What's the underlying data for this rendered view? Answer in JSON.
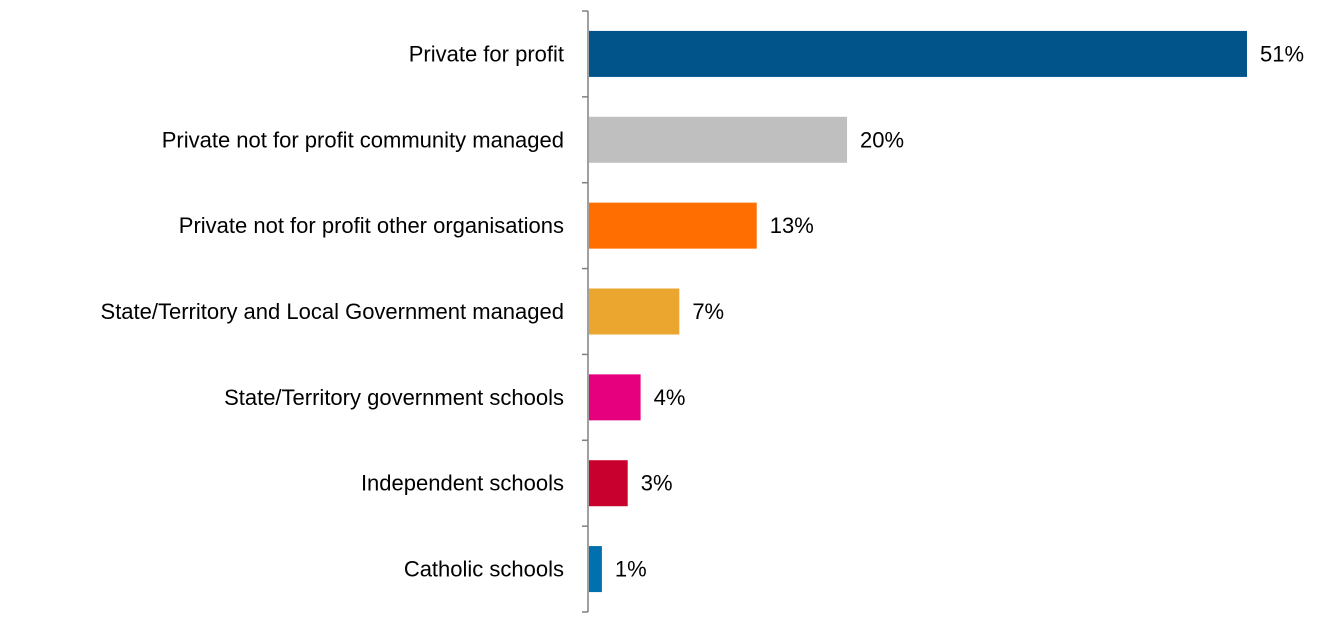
{
  "chart_data": {
    "type": "bar",
    "orientation": "horizontal",
    "title": "",
    "xlabel": "",
    "ylabel": "",
    "categories": [
      "Private for profit",
      "Private not for profit community managed",
      "Private not for profit other organisations",
      "State/Territory and Local Government managed",
      "State/Territory government schools",
      "Independent schools",
      "Catholic schools"
    ],
    "values": [
      51,
      20,
      13,
      7,
      4,
      3,
      1
    ],
    "value_labels": [
      "51%",
      "20%",
      "13%",
      "7%",
      "4%",
      "3%",
      "1%"
    ],
    "colors": [
      "#00548A",
      "#BFBFBF",
      "#FF6E00",
      "#EAA62E",
      "#E6007E",
      "#C8002D",
      "#0071AE"
    ],
    "xlim": [
      0,
      51
    ],
    "grid": false,
    "legend": "none"
  }
}
